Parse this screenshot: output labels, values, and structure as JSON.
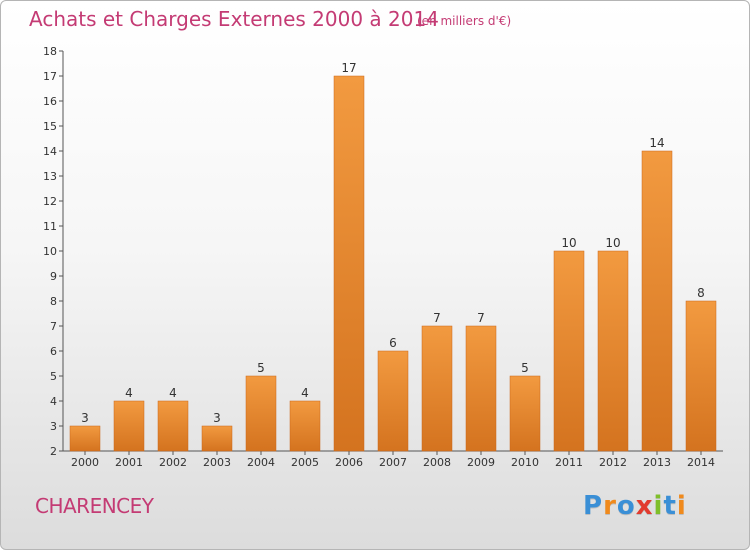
{
  "chart_data": {
    "type": "bar",
    "title": "Achats et Charges Externes 2000 à 2014",
    "subtitle": "(en milliers d'€)",
    "categories": [
      "2000",
      "2001",
      "2002",
      "2003",
      "2004",
      "2005",
      "2006",
      "2007",
      "2008",
      "2009",
      "2010",
      "2011",
      "2012",
      "2013",
      "2014"
    ],
    "values": [
      3,
      4,
      4,
      3,
      5,
      4,
      17,
      6,
      7,
      7,
      5,
      10,
      10,
      14,
      8
    ],
    "ylim": [
      2,
      18
    ],
    "yticks": [
      2,
      3,
      4,
      5,
      6,
      7,
      8,
      9,
      10,
      11,
      12,
      13,
      14,
      15,
      16,
      17,
      18
    ],
    "xlabel": "",
    "ylabel": "",
    "grid": false,
    "bar_color": "#f29a40",
    "bar_color_dark": "#d4731f"
  },
  "footer": {
    "place": "CHARENCEY",
    "logo_letters": [
      {
        "char": "P",
        "color": "#3a8fd6"
      },
      {
        "char": "r",
        "color": "#f08a1c"
      },
      {
        "char": "o",
        "color": "#3a8fd6"
      },
      {
        "char": "x",
        "color": "#e23b2e"
      },
      {
        "char": "i",
        "color": "#7fbf2a"
      },
      {
        "char": "t",
        "color": "#3a8fd6"
      },
      {
        "char": "i",
        "color": "#f08a1c"
      }
    ]
  }
}
